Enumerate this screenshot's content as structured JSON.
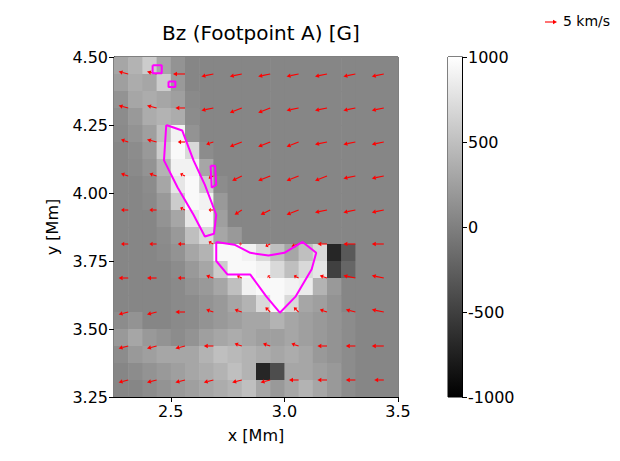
{
  "chart_data": {
    "type": "heatmap",
    "title": "Bz (Footpoint A) [G]",
    "x_label": "x [Mm]",
    "y_label": "y [Mm]",
    "xlim": [
      2.25,
      3.5
    ],
    "xticks": [
      2.5,
      {
        "value": 3,
        "label": "3.0"
      },
      3.5
    ],
    "ylim": [
      3.25,
      4.5
    ],
    "yticks": [
      3.25,
      {
        "value": 3.5,
        "label": "3.50"
      },
      3.75,
      {
        "value": 4,
        "label": "4.00"
      },
      4.25,
      {
        "value": 4.5,
        "label": "4.50"
      }
    ],
    "grid": false,
    "colorbar": {
      "range": [
        -1000,
        1000
      ],
      "ticks": [
        -1000,
        -500,
        0,
        500,
        1000
      ]
    },
    "cells": {
      "x": [
        2.28125,
        2.34375,
        2.40625,
        2.46875,
        2.53125,
        2.59375,
        2.65625,
        2.71875,
        2.78125,
        2.84375,
        2.90625,
        2.96875,
        3.03125,
        3.09375,
        3.15625,
        3.21875,
        3.28125,
        3.34375,
        3.40625,
        3.46875
      ],
      "y": [
        4.46875,
        4.40625,
        4.34375,
        4.28125,
        4.21875,
        4.15625,
        4.09375,
        4.03125,
        3.96875,
        3.90625,
        3.84375,
        3.78125,
        3.71875,
        3.65625,
        3.59375,
        3.53125,
        3.46875,
        3.40625,
        3.34375,
        3.28125
      ],
      "values": [
        [
          300,
          400,
          600,
          300,
          150,
          50,
          50,
          50,
          50,
          50,
          50,
          50,
          50,
          50,
          50,
          50,
          50,
          50,
          50,
          50
        ],
        [
          250,
          350,
          300,
          600,
          200,
          50,
          50,
          50,
          50,
          50,
          50,
          50,
          50,
          50,
          50,
          50,
          50,
          50,
          50,
          50
        ],
        [
          150,
          300,
          350,
          300,
          250,
          80,
          50,
          50,
          50,
          50,
          50,
          50,
          50,
          50,
          50,
          50,
          50,
          50,
          50,
          50
        ],
        [
          100,
          200,
          350,
          400,
          350,
          100,
          50,
          50,
          50,
          50,
          50,
          50,
          50,
          50,
          50,
          50,
          50,
          50,
          50,
          50
        ],
        [
          80,
          150,
          250,
          500,
          900,
          150,
          50,
          50,
          50,
          50,
          50,
          50,
          50,
          50,
          50,
          50,
          50,
          50,
          50,
          50
        ],
        [
          50,
          100,
          200,
          600,
          950,
          700,
          100,
          50,
          50,
          50,
          50,
          50,
          50,
          50,
          50,
          50,
          50,
          50,
          50,
          50
        ],
        [
          50,
          80,
          150,
          400,
          900,
          900,
          300,
          50,
          50,
          50,
          50,
          50,
          50,
          50,
          50,
          50,
          50,
          50,
          50,
          50
        ],
        [
          50,
          50,
          100,
          300,
          800,
          950,
          600,
          100,
          50,
          50,
          50,
          50,
          50,
          50,
          50,
          50,
          50,
          50,
          50,
          50
        ],
        [
          50,
          50,
          80,
          200,
          600,
          950,
          900,
          200,
          50,
          50,
          50,
          50,
          50,
          50,
          50,
          50,
          50,
          50,
          50,
          50
        ],
        [
          50,
          50,
          50,
          150,
          300,
          800,
          950,
          250,
          50,
          50,
          50,
          50,
          50,
          50,
          50,
          50,
          50,
          50,
          50,
          50
        ],
        [
          50,
          50,
          50,
          100,
          200,
          500,
          700,
          300,
          200,
          50,
          50,
          50,
          50,
          50,
          50,
          50,
          50,
          50,
          50,
          50
        ],
        [
          50,
          50,
          50,
          80,
          150,
          300,
          400,
          950,
          950,
          900,
          700,
          500,
          300,
          500,
          700,
          -700,
          -300,
          50,
          50,
          50
        ],
        [
          50,
          50,
          50,
          50,
          100,
          200,
          300,
          600,
          950,
          950,
          900,
          700,
          500,
          700,
          800,
          -500,
          -200,
          50,
          50,
          50
        ],
        [
          50,
          50,
          50,
          50,
          80,
          150,
          200,
          300,
          500,
          900,
          950,
          950,
          900,
          850,
          400,
          200,
          50,
          50,
          50,
          50
        ],
        [
          50,
          50,
          50,
          50,
          80,
          100,
          150,
          200,
          300,
          400,
          700,
          950,
          700,
          300,
          250,
          150,
          50,
          50,
          50,
          50
        ],
        [
          100,
          150,
          50,
          50,
          80,
          100,
          150,
          200,
          250,
          300,
          300,
          400,
          300,
          250,
          200,
          150,
          100,
          50,
          50,
          50
        ],
        [
          200,
          300,
          200,
          150,
          100,
          150,
          250,
          300,
          350,
          300,
          250,
          250,
          300,
          250,
          200,
          150,
          100,
          50,
          50,
          50
        ],
        [
          100,
          200,
          250,
          300,
          300,
          300,
          400,
          500,
          450,
          400,
          350,
          300,
          350,
          300,
          200,
          150,
          100,
          50,
          50,
          50
        ],
        [
          50,
          100,
          150,
          200,
          250,
          300,
          350,
          400,
          500,
          400,
          -700,
          -400,
          300,
          300,
          250,
          200,
          100,
          50,
          50,
          50
        ],
        [
          50,
          50,
          100,
          150,
          200,
          250,
          300,
          350,
          400,
          500,
          300,
          200,
          300,
          400,
          300,
          200,
          100,
          50,
          50,
          50
        ]
      ]
    },
    "vectors": {
      "color": "red",
      "x": [
        2.3125,
        2.4375,
        2.5625,
        2.6875,
        2.8125,
        2.9375,
        3.0625,
        3.1875,
        3.3125,
        3.4375
      ],
      "y": [
        4.4375,
        4.3125,
        4.1875,
        4.0625,
        3.9375,
        3.8125,
        3.6875,
        3.5625,
        3.4375,
        3.3125
      ],
      "u": [
        [
          -4,
          -4,
          -5,
          -5,
          -5,
          -5,
          -5,
          -5,
          -5,
          -5
        ],
        [
          -4,
          -4,
          -4,
          -5,
          -5,
          -5,
          -5,
          -5,
          -5,
          -5
        ],
        [
          -3,
          -4,
          -3,
          -3,
          -5,
          -5,
          -5,
          -5,
          -5,
          -5
        ],
        [
          -3,
          -3,
          -2,
          -2,
          -4,
          -5,
          -5,
          -5,
          -5,
          -5
        ],
        [
          -3,
          -3,
          -2,
          -2,
          -3,
          -4,
          -5,
          -5,
          -5,
          -5
        ],
        [
          -3,
          -3,
          -3,
          -2,
          -1,
          -2,
          -3,
          -4,
          -5,
          -5
        ],
        [
          -4,
          -4,
          -3,
          -3,
          -2,
          -1,
          -2,
          -3,
          -5,
          -5
        ],
        [
          -4,
          -4,
          -4,
          -3,
          -3,
          -2,
          -2,
          -3,
          -4,
          -5
        ],
        [
          -4,
          -4,
          -4,
          -4,
          -3,
          -3,
          -3,
          -4,
          -4,
          -5
        ],
        [
          -4,
          -4,
          -4,
          -4,
          -4,
          -4,
          -4,
          -4,
          -4,
          -4
        ]
      ],
      "v": [
        [
          1,
          1,
          0,
          -1,
          -1,
          -1,
          -1,
          -1,
          -1,
          -1
        ],
        [
          1,
          1,
          0,
          -1,
          -2,
          -2,
          -1,
          -1,
          -1,
          -1
        ],
        [
          1,
          1,
          0,
          -1,
          -2,
          -2,
          -2,
          -1,
          -1,
          -1
        ],
        [
          1,
          1,
          1,
          -1,
          -2,
          -2,
          -2,
          -2,
          -1,
          -1
        ],
        [
          0,
          0,
          1,
          0,
          -2,
          -2,
          -2,
          -1,
          -1,
          -1
        ],
        [
          0,
          0,
          0,
          1,
          0,
          -1,
          -1,
          0,
          0,
          0
        ],
        [
          0,
          0,
          0,
          1,
          1,
          1,
          1,
          1,
          1,
          1
        ],
        [
          -1,
          -1,
          0,
          1,
          1,
          2,
          2,
          1,
          1,
          1
        ],
        [
          -1,
          -1,
          -1,
          0,
          1,
          1,
          1,
          0,
          0,
          0
        ],
        [
          -1,
          -1,
          -1,
          -1,
          -1,
          -1,
          0,
          0,
          0,
          0
        ]
      ]
    },
    "arrow_key": {
      "value": 5,
      "label": "5 km/s"
    },
    "contours": {
      "color": "magenta",
      "lines": [
        {
          "x": [
            2.48,
            2.55,
            2.6,
            2.65,
            2.7,
            2.69,
            2.65,
            2.6,
            2.53,
            2.47,
            2.48
          ],
          "y": [
            4.25,
            4.23,
            4.12,
            4.03,
            3.92,
            3.85,
            3.84,
            3.92,
            4.02,
            4.12,
            4.25
          ]
        },
        {
          "x": [
            2.7,
            2.78,
            2.85,
            2.93,
            3.0,
            3.08,
            3.14,
            3.12,
            3.05,
            2.98,
            2.92,
            2.85,
            2.75,
            2.7,
            2.7
          ],
          "y": [
            3.82,
            3.81,
            3.78,
            3.77,
            3.78,
            3.82,
            3.78,
            3.72,
            3.62,
            3.56,
            3.62,
            3.7,
            3.7,
            3.75,
            3.82
          ]
        },
        {
          "x": [
            2.675,
            2.695,
            2.7,
            2.68,
            2.675
          ],
          "y": [
            4.1,
            4.1,
            4.03,
            4.02,
            4.1
          ]
        },
        {
          "x": [
            2.42,
            2.46,
            2.46,
            2.42,
            2.42
          ],
          "y": [
            4.47,
            4.47,
            4.44,
            4.44,
            4.47
          ]
        },
        {
          "x": [
            2.49,
            2.52,
            2.52,
            2.49,
            2.49
          ],
          "y": [
            4.41,
            4.41,
            4.39,
            4.39,
            4.41
          ]
        }
      ]
    }
  }
}
